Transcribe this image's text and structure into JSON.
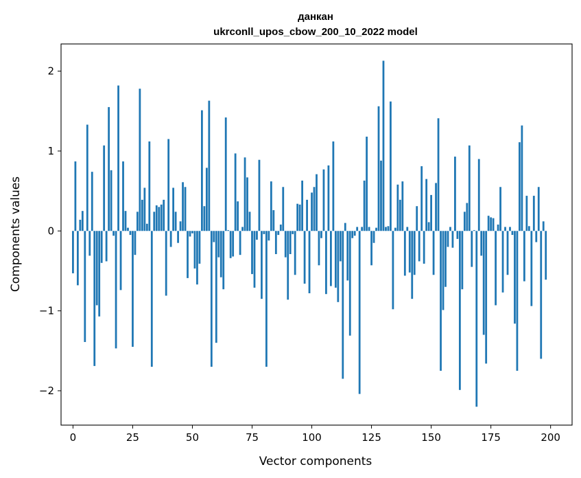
{
  "chart_data": {
    "type": "bar",
    "title_lines": [
      "данкан",
      "ukrconll_upos_cbow_200_10_2022 model"
    ],
    "xlabel": "Vector components",
    "ylabel": "Components values",
    "xlim": [
      -5,
      209
    ],
    "ylim": [
      -2.43,
      2.34
    ],
    "xticks": [
      0,
      25,
      50,
      75,
      100,
      125,
      150,
      175,
      200
    ],
    "xtick_labels": [
      "0",
      "25",
      "50",
      "75",
      "100",
      "125",
      "150",
      "175",
      "200"
    ],
    "yticks": [
      -2,
      -1,
      0,
      1,
      2
    ],
    "ytick_labels": [
      "−2",
      "−1",
      "0",
      "1",
      "2"
    ],
    "grid": false,
    "bar_color": "#1f77b4",
    "x_start": 0,
    "values": [
      -0.53,
      0.87,
      -0.68,
      0.14,
      0.25,
      -1.39,
      1.33,
      -0.31,
      0.74,
      -1.69,
      -0.93,
      -1.07,
      -0.4,
      1.07,
      -0.38,
      1.55,
      0.76,
      -0.06,
      -1.47,
      1.82,
      -0.74,
      0.87,
      0.25,
      0.04,
      -0.05,
      -1.45,
      -0.3,
      0.24,
      1.78,
      0.39,
      0.54,
      0.09,
      1.12,
      -1.7,
      0.24,
      0.32,
      0.3,
      0.33,
      0.39,
      -0.81,
      1.15,
      -0.2,
      0.54,
      0.24,
      -0.15,
      0.12,
      0.61,
      0.55,
      -0.59,
      -0.07,
      -0.03,
      -0.47,
      -0.67,
      -0.41,
      1.51,
      0.31,
      0.79,
      1.63,
      -1.7,
      -0.14,
      -1.4,
      -0.33,
      -0.58,
      -0.73,
      1.42,
      0.01,
      -0.34,
      -0.32,
      0.97,
      0.37,
      -0.3,
      0.05,
      0.92,
      0.67,
      0.24,
      -0.54,
      -0.71,
      -0.11,
      0.89,
      -0.85,
      -0.04,
      -1.7,
      -0.12,
      0.62,
      0.26,
      -0.29,
      -0.05,
      0.08,
      0.55,
      -0.33,
      -0.86,
      -0.29,
      -0.04,
      -0.55,
      0.34,
      0.33,
      0.63,
      -0.66,
      0.39,
      -0.78,
      0.48,
      0.55,
      0.71,
      -0.43,
      -0.09,
      0.77,
      -0.79,
      0.82,
      -0.69,
      1.12,
      -0.71,
      -0.89,
      -0.38,
      -1.85,
      0.1,
      -0.62,
      -1.31,
      -0.09,
      -0.06,
      0.05,
      -2.04,
      0.05,
      0.63,
      1.18,
      0.05,
      -0.43,
      -0.15,
      0.04,
      1.56,
      0.88,
      2.13,
      0.05,
      0.06,
      1.62,
      -0.98,
      0.04,
      0.58,
      0.39,
      0.62,
      -0.56,
      0.05,
      -0.52,
      -0.85,
      -0.55,
      0.31,
      -0.38,
      0.81,
      -0.41,
      0.65,
      0.11,
      0.45,
      -0.55,
      0.6,
      1.41,
      -1.75,
      -0.99,
      -0.7,
      -0.2,
      0.05,
      -0.21,
      0.93,
      -0.1,
      -1.99,
      -0.73,
      0.24,
      0.35,
      1.07,
      -0.45,
      0.01,
      -2.2,
      0.9,
      -0.31,
      -1.3,
      -1.66,
      0.19,
      0.17,
      0.16,
      -0.93,
      0.08,
      0.55,
      -0.77,
      0.05,
      -0.55,
      0.05,
      -0.05,
      -1.16,
      -1.75,
      1.11,
      1.32,
      -0.63,
      0.44,
      0.06,
      -0.94,
      0.44,
      -0.14,
      0.55,
      -1.6,
      0.12,
      -0.61
    ]
  }
}
